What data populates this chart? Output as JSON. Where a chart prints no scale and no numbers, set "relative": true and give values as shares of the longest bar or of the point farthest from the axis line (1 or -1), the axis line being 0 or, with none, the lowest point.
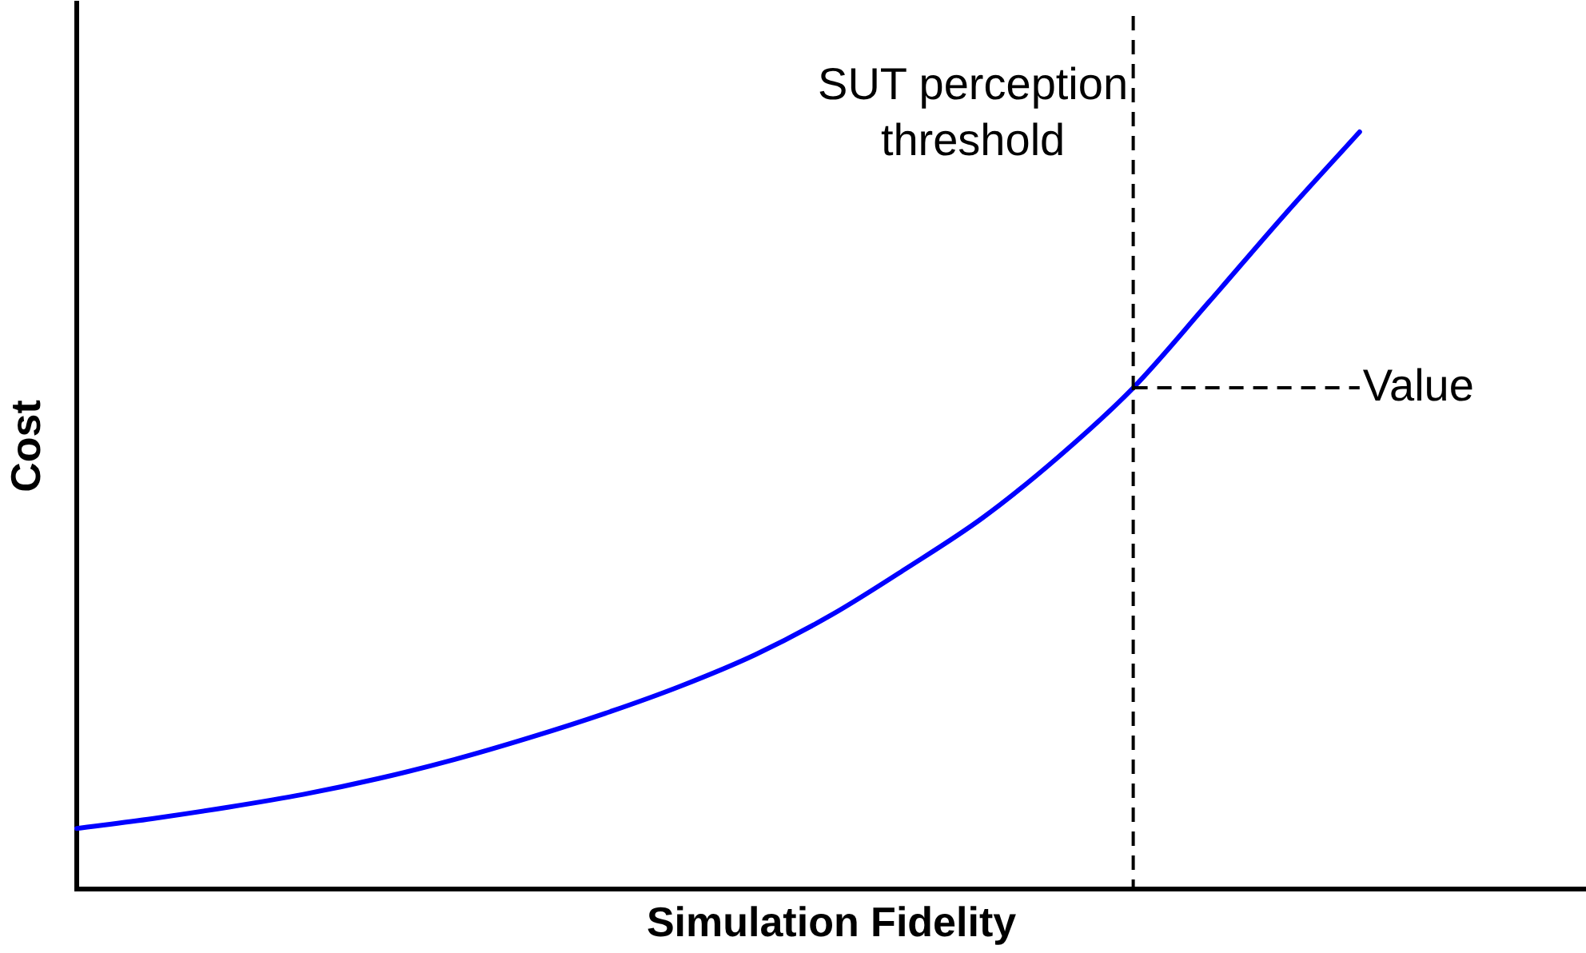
{
  "chart_data": {
    "type": "line",
    "xlabel": "Simulation Fidelity",
    "ylabel": "Cost",
    "relative": true,
    "categories": [
      null,
      null,
      null,
      null,
      null,
      null,
      null,
      null,
      null,
      null,
      null,
      null,
      null,
      null,
      null,
      null,
      null,
      null,
      null,
      null,
      null
    ],
    "values": [
      0.08,
      0.093,
      0.108,
      0.125,
      0.146,
      0.171,
      0.2,
      0.232,
      0.268,
      0.31,
      0.362,
      0.424,
      0.49,
      0.57,
      0.662,
      0.775,
      0.89,
      1,
      null,
      null,
      null
    ],
    "color": "#0000ff",
    "marker": "none",
    "grid": false,
    "legend": false,
    "ref_lines": [
      {
        "axis": "y",
        "value": 0.662,
        "label": "Value",
        "color": "#000000",
        "line_style": "dashed"
      }
    ],
    "annotations": [
      "SUT perception threshold"
    ]
  }
}
